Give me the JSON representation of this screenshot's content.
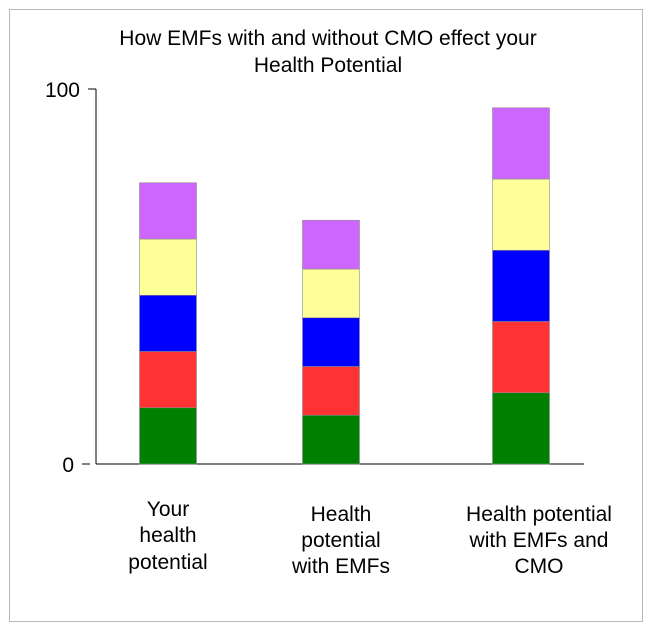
{
  "chart_data": {
    "type": "bar",
    "stacked": true,
    "title_lines": [
      "How EMFs with and without CMO effect your",
      "Health Potential"
    ],
    "xlabel": "",
    "ylabel": "",
    "ylim": [
      0,
      100
    ],
    "yticks": [
      "100",
      "0"
    ],
    "grid": false,
    "legend": "none",
    "categories": [
      [
        "Your",
        "health",
        "potential"
      ],
      [
        "Health",
        "potential",
        "with EMFs"
      ],
      [
        "Health potential",
        "with EMFs and",
        "CMO"
      ]
    ],
    "series": [
      {
        "color": "#008000",
        "values": [
          15,
          13,
          19
        ]
      },
      {
        "color": "#ff3333",
        "values": [
          15,
          13,
          19
        ]
      },
      {
        "color": "#0000ff",
        "values": [
          15,
          13,
          19
        ]
      },
      {
        "color": "#ffff99",
        "values": [
          15,
          13,
          19
        ]
      },
      {
        "color": "#cc66ff",
        "values": [
          15,
          13,
          19
        ]
      }
    ],
    "totals": [
      75,
      65,
      95
    ]
  }
}
